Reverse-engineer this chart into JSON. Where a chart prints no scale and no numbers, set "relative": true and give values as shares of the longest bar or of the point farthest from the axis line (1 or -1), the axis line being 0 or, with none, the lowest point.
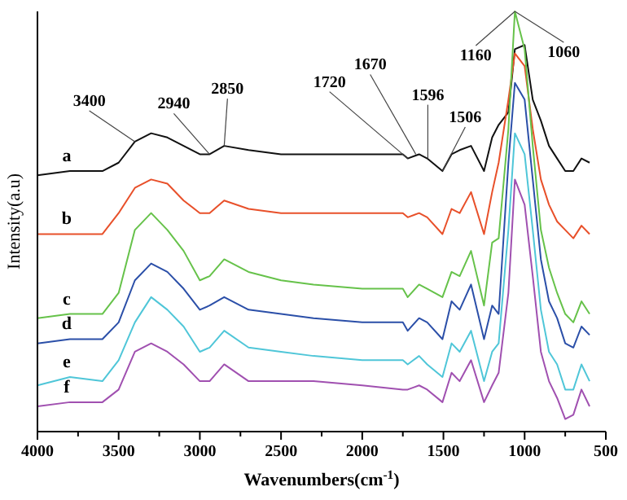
{
  "chart_data": {
    "type": "line",
    "relative": true,
    "xlabel": "Wavenumbers(cm$^{-1}$)",
    "ylabel": "Intensity(a.u)",
    "xlim": [
      4000,
      500
    ],
    "xticks": [
      4000,
      {
        "value": 3750,
        "label": null
      },
      3500,
      {
        "value": 3250,
        "label": null
      },
      3000,
      {
        "value": 2750,
        "label": null
      },
      2500,
      {
        "value": 2250,
        "label": null
      },
      2000,
      {
        "value": 1750,
        "label": null
      },
      1500,
      {
        "value": 1250,
        "label": null
      },
      1000,
      {
        "value": 750,
        "label": null
      },
      500
    ],
    "x": [
      4000,
      3800,
      3600,
      3500,
      3400,
      3300,
      3200,
      3100,
      3000,
      2940,
      2850,
      2700,
      2500,
      2300,
      2000,
      1750,
      1720,
      1650,
      1600,
      1506,
      1450,
      1400,
      1330,
      1250,
      1200,
      1160,
      1100,
      1060,
      1000,
      950,
      900,
      850,
      800,
      750,
      700,
      650,
      600
    ],
    "legend": false,
    "grid": false,
    "series": [
      {
        "name": "a",
        "color": "#111111",
        "values": [
          0.61,
          0.62,
          0.62,
          0.64,
          0.69,
          0.71,
          0.7,
          0.68,
          0.66,
          0.66,
          0.68,
          0.67,
          0.66,
          0.66,
          0.66,
          0.66,
          0.65,
          0.66,
          0.65,
          0.62,
          0.66,
          0.67,
          0.68,
          0.62,
          0.7,
          0.73,
          0.76,
          0.91,
          0.92,
          0.79,
          0.74,
          0.68,
          0.65,
          0.62,
          0.62,
          0.65,
          0.64
        ]
      },
      {
        "name": "b",
        "color": "#e8502a",
        "values": [
          0.47,
          0.47,
          0.47,
          0.52,
          0.58,
          0.6,
          0.59,
          0.55,
          0.52,
          0.52,
          0.55,
          0.53,
          0.52,
          0.52,
          0.52,
          0.52,
          0.51,
          0.52,
          0.51,
          0.47,
          0.53,
          0.52,
          0.57,
          0.47,
          0.57,
          0.64,
          0.79,
          0.9,
          0.87,
          0.72,
          0.6,
          0.54,
          0.5,
          0.48,
          0.46,
          0.49,
          0.47
        ]
      },
      {
        "name": "c",
        "color": "#66c24a",
        "values": [
          0.27,
          0.28,
          0.28,
          0.33,
          0.48,
          0.52,
          0.48,
          0.43,
          0.36,
          0.37,
          0.41,
          0.38,
          0.36,
          0.35,
          0.34,
          0.34,
          0.32,
          0.35,
          0.34,
          0.32,
          0.38,
          0.37,
          0.43,
          0.3,
          0.45,
          0.46,
          0.72,
          1,
          0.91,
          0.68,
          0.48,
          0.39,
          0.33,
          0.28,
          0.26,
          0.31,
          0.28
        ]
      },
      {
        "name": "d",
        "color": "#2b4fa8",
        "values": [
          0.21,
          0.22,
          0.22,
          0.26,
          0.36,
          0.4,
          0.38,
          0.34,
          0.29,
          0.3,
          0.32,
          0.29,
          0.28,
          0.27,
          0.26,
          0.26,
          0.24,
          0.27,
          0.26,
          0.22,
          0.31,
          0.29,
          0.35,
          0.22,
          0.3,
          0.28,
          0.64,
          0.83,
          0.79,
          0.6,
          0.41,
          0.31,
          0.27,
          0.21,
          0.2,
          0.25,
          0.23
        ]
      },
      {
        "name": "e",
        "color": "#4fc6d8",
        "values": [
          0.11,
          0.13,
          0.12,
          0.17,
          0.26,
          0.32,
          0.29,
          0.25,
          0.19,
          0.2,
          0.24,
          0.2,
          0.19,
          0.18,
          0.17,
          0.17,
          0.16,
          0.18,
          0.16,
          0.13,
          0.21,
          0.19,
          0.24,
          0.12,
          0.19,
          0.21,
          0.48,
          0.71,
          0.66,
          0.48,
          0.29,
          0.19,
          0.16,
          0.1,
          0.1,
          0.16,
          0.12
        ]
      },
      {
        "name": "f",
        "color": "#a050b0",
        "values": [
          0.06,
          0.07,
          0.07,
          0.1,
          0.19,
          0.21,
          0.19,
          0.16,
          0.12,
          0.12,
          0.16,
          0.12,
          0.12,
          0.12,
          0.11,
          0.1,
          0.1,
          0.11,
          0.1,
          0.07,
          0.14,
          0.12,
          0.17,
          0.07,
          0.11,
          0.14,
          0.33,
          0.6,
          0.54,
          0.37,
          0.19,
          0.12,
          0.08,
          0.03,
          0.04,
          0.1,
          0.06
        ]
      }
    ],
    "annotations": [
      {
        "text": "3400",
        "x": 3400,
        "y": 0.69
      },
      {
        "text": "2940",
        "x": 2940,
        "y": 0.66
      },
      {
        "text": "2850",
        "x": 2850,
        "y": 0.68
      },
      {
        "text": "1720",
        "x": 1720,
        "y": 0.65
      },
      {
        "text": "1670",
        "x": 1670,
        "y": 0.66
      },
      {
        "text": "1596",
        "x": 1596,
        "y": 0.65
      },
      {
        "text": "1506",
        "x": 1506,
        "y": 0.62
      },
      {
        "text": "1160",
        "x": 1060,
        "y": 1
      },
      {
        "text": "1060",
        "x": 1060,
        "y": 1
      }
    ]
  }
}
